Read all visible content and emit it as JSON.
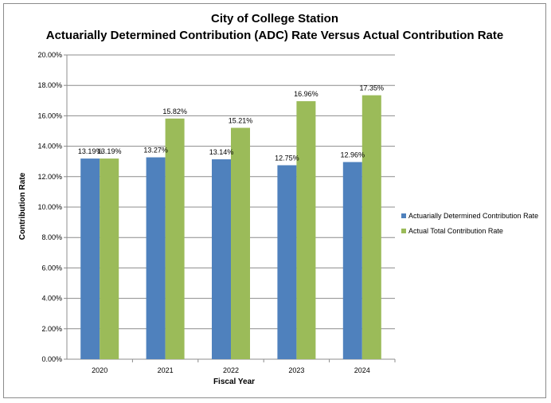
{
  "chart_data": {
    "type": "bar",
    "title": "City of College Station",
    "subtitle": "Actuarially Determined Contribution (ADC) Rate Versus Actual Contribution Rate",
    "xlabel": "Fiscal Year",
    "ylabel": "Contribution Rate",
    "categories": [
      "2020",
      "2021",
      "2022",
      "2023",
      "2024"
    ],
    "ylim": [
      0,
      20
    ],
    "ytick_step": 2,
    "ytick_labels": [
      "0.00%",
      "2.00%",
      "4.00%",
      "6.00%",
      "8.00%",
      "10.00%",
      "12.00%",
      "14.00%",
      "16.00%",
      "18.00%",
      "20.00%"
    ],
    "grid": true,
    "legend_position": "right",
    "series": [
      {
        "name": "Actuarially Determined Contribution Rate",
        "color": "#4f81bd",
        "values": [
          13.19,
          13.27,
          13.14,
          12.75,
          12.96
        ],
        "labels": [
          "13.19%",
          "13.27%",
          "13.14%",
          "12.75%",
          "12.96%"
        ]
      },
      {
        "name": "Actual Total Contribution Rate",
        "color": "#9bbb59",
        "values": [
          13.19,
          15.82,
          15.21,
          16.96,
          17.35
        ],
        "labels": [
          "13.19%",
          "15.82%",
          "15.21%",
          "16.96%",
          "17.35%"
        ]
      }
    ]
  }
}
